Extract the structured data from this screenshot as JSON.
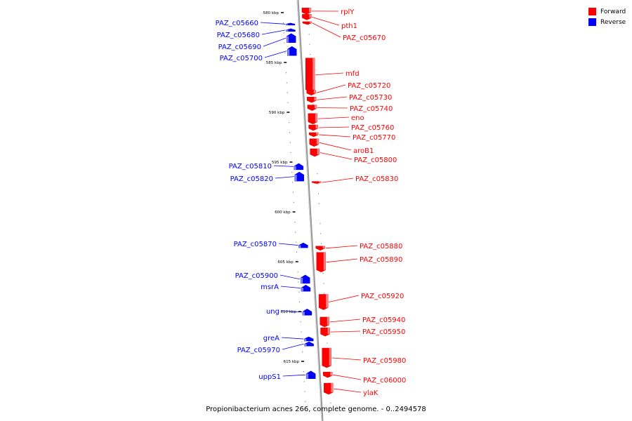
{
  "legend": {
    "forward_label": "Forward",
    "reverse_label": "Reverse",
    "forward_color": "#ff0000",
    "reverse_color": "#0000ff"
  },
  "footer": "Propionibacterium acnes 266, complete genome. - 0..2494578",
  "axis": {
    "tick_labels": [
      "580 kbp",
      "585 kbp",
      "590 kbp",
      "595 kbp",
      "600 kbp",
      "605 kbp",
      "610 kbp",
      "615 kbp"
    ]
  },
  "genes": [
    {
      "name": "rplY",
      "strand": "forward",
      "kbp": 579.85
    },
    {
      "name": "pth1",
      "strand": "forward",
      "kbp": 580.45
    },
    {
      "name": "PAZ_c05670",
      "strand": "forward",
      "kbp": 581.05
    },
    {
      "name": "PAZ_c05660",
      "strand": "reverse",
      "kbp": 581.15
    },
    {
      "name": "PAZ_c05680",
      "strand": "reverse",
      "kbp": 581.75
    },
    {
      "name": "PAZ_c05690",
      "strand": "reverse",
      "kbp": 582.55
    },
    {
      "name": "PAZ_c05700",
      "strand": "reverse",
      "kbp": 583.85
    },
    {
      "name": "mfd",
      "strand": "forward",
      "kbp": 586.25
    },
    {
      "name": "PAZ_c05720",
      "strand": "forward",
      "kbp": 588.05
    },
    {
      "name": "PAZ_c05730",
      "strand": "forward",
      "kbp": 588.75
    },
    {
      "name": "PAZ_c05740",
      "strand": "forward",
      "kbp": 589.55
    },
    {
      "name": "eno",
      "strand": "forward",
      "kbp": 590.65
    },
    {
      "name": "PAZ_c05760",
      "strand": "forward",
      "kbp": 591.55
    },
    {
      "name": "PAZ_c05770",
      "strand": "forward",
      "kbp": 592.25
    },
    {
      "name": "aroB1",
      "strand": "forward",
      "kbp": 593.05
    },
    {
      "name": "PAZ_c05800",
      "strand": "forward",
      "kbp": 594.05
    },
    {
      "name": "PAZ_c05810",
      "strand": "reverse",
      "kbp": 595.45
    },
    {
      "name": "PAZ_c05820",
      "strand": "reverse",
      "kbp": 596.45
    },
    {
      "name": "PAZ_c05830",
      "strand": "forward",
      "kbp": 597.05
    },
    {
      "name": "PAZ_c05870",
      "strand": "reverse",
      "kbp": 603.35
    },
    {
      "name": "PAZ_c05880",
      "strand": "forward",
      "kbp": 603.65
    },
    {
      "name": "PAZ_c05890",
      "strand": "forward",
      "kbp": 605.05
    },
    {
      "name": "PAZ_c05900",
      "strand": "reverse",
      "kbp": 606.75
    },
    {
      "name": "msrA",
      "strand": "reverse",
      "kbp": 607.65
    },
    {
      "name": "PAZ_c05920",
      "strand": "forward",
      "kbp": 609.05
    },
    {
      "name": "ung",
      "strand": "reverse",
      "kbp": 610.05
    },
    {
      "name": "PAZ_c05940",
      "strand": "forward",
      "kbp": 611.05
    },
    {
      "name": "PAZ_c05950",
      "strand": "forward",
      "kbp": 612.05
    },
    {
      "name": "greA",
      "strand": "reverse",
      "kbp": 612.75
    },
    {
      "name": "PAZ_c05970",
      "strand": "reverse",
      "kbp": 613.25
    },
    {
      "name": "PAZ_c05980",
      "strand": "forward",
      "kbp": 614.65
    },
    {
      "name": "uppS1",
      "strand": "reverse",
      "kbp": 616.35
    },
    {
      "name": "PAZ_c06000",
      "strand": "forward",
      "kbp": 616.35
    },
    {
      "name": "ylaK",
      "strand": "forward",
      "kbp": 617.75
    }
  ]
}
